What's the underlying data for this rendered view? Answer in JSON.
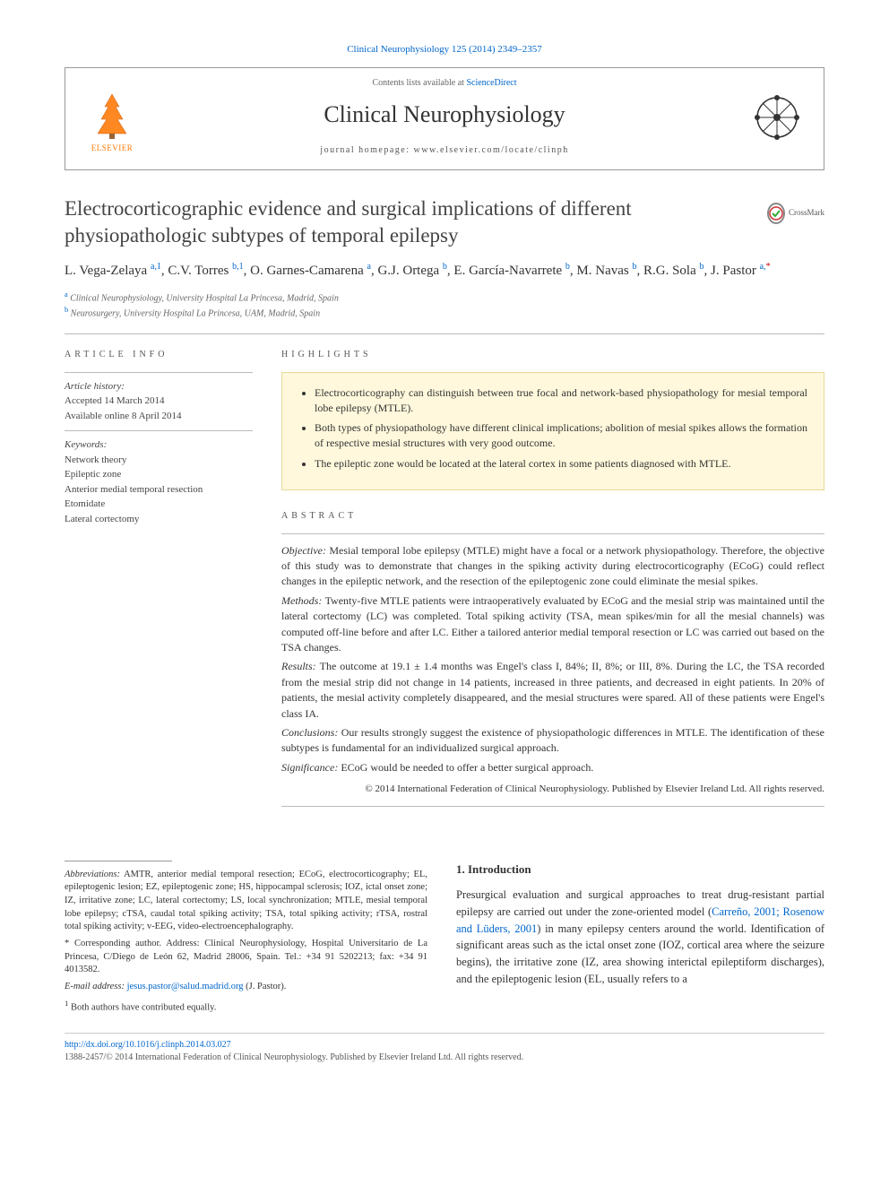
{
  "citation": {
    "journal_link_text": "Clinical Neurophysiology 125 (2014) 2349–2357",
    "link_color": "#0066cc"
  },
  "header": {
    "elsevier_label": "ELSEVIER",
    "contents_prefix": "Contents lists available at ",
    "contents_link": "ScienceDirect",
    "journal_name": "Clinical Neurophysiology",
    "homepage_prefix": "journal homepage: ",
    "homepage_url": "www.elsevier.com/locate/clinph"
  },
  "title": "Electrocorticographic evidence and surgical implications of different physiopathologic subtypes of temporal epilepsy",
  "crossmark_label": "CrossMark",
  "authors_html": "L. Vega-Zelaya <sup>a,1</sup>, C.V. Torres <sup>b,1</sup>, O. Garnes-Camarena <sup>a</sup>, G.J. Ortega <sup>b</sup>, E. García-Navarrete <sup>b</sup>, M. Navas <sup>b</sup>, R.G. Sola <sup>b</sup>, J. Pastor <sup>a,</sup><sup class=\"star\">*</sup>",
  "affiliations": [
    {
      "sup": "a",
      "text": "Clinical Neurophysiology, University Hospital La Princesa, Madrid, Spain"
    },
    {
      "sup": "b",
      "text": "Neurosurgery, University Hospital La Princesa, UAM, Madrid, Spain"
    }
  ],
  "article_info": {
    "label": "ARTICLE INFO",
    "history_label": "Article history:",
    "history": [
      "Accepted 14 March 2014",
      "Available online 8 April 2014"
    ],
    "keywords_label": "Keywords:",
    "keywords": [
      "Network theory",
      "Epileptic zone",
      "Anterior medial temporal resection",
      "Etomidate",
      "Lateral cortectomy"
    ]
  },
  "highlights": {
    "label": "HIGHLIGHTS",
    "items": [
      "Electrocorticography can distinguish between true focal and network-based physiopathology for mesial temporal lobe epilepsy (MTLE).",
      "Both types of physiopathology have different clinical implications; abolition of mesial spikes allows the formation of respective mesial structures with very good outcome.",
      "The epileptic zone would be located at the lateral cortex in some patients diagnosed with MTLE."
    ],
    "bg_color": "#fff8dc",
    "border_color": "#e8d898"
  },
  "abstract": {
    "label": "ABSTRACT",
    "sections": [
      {
        "label": "Objective:",
        "text": "Mesial temporal lobe epilepsy (MTLE) might have a focal or a network physiopathology. Therefore, the objective of this study was to demonstrate that changes in the spiking activity during electrocorticography (ECoG) could reflect changes in the epileptic network, and the resection of the epileptogenic zone could eliminate the mesial spikes."
      },
      {
        "label": "Methods:",
        "text": "Twenty-five MTLE patients were intraoperatively evaluated by ECoG and the mesial strip was maintained until the lateral cortectomy (LC) was completed. Total spiking activity (TSA, mean spikes/min for all the mesial channels) was computed off-line before and after LC. Either a tailored anterior medial temporal resection or LC was carried out based on the TSA changes."
      },
      {
        "label": "Results:",
        "text": "The outcome at 19.1 ± 1.4 months was Engel's class I, 84%; II, 8%; or III, 8%. During the LC, the TSA recorded from the mesial strip did not change in 14 patients, increased in three patients, and decreased in eight patients. In 20% of patients, the mesial activity completely disappeared, and the mesial structures were spared. All of these patients were Engel's class IA."
      },
      {
        "label": "Conclusions:",
        "text": "Our results strongly suggest the existence of physiopathologic differences in MTLE. The identification of these subtypes is fundamental for an individualized surgical approach."
      },
      {
        "label": "Significance:",
        "text": "ECoG would be needed to offer a better surgical approach."
      }
    ],
    "copyright": "© 2014 International Federation of Clinical Neurophysiology. Published by Elsevier Ireland Ltd. All rights reserved."
  },
  "footnotes": {
    "abbrev_label": "Abbreviations:",
    "abbrev_text": "AMTR, anterior medial temporal resection; ECoG, electrocorticography; EL, epileptogenic lesion; EZ, epileptogenic zone; HS, hippocampal sclerosis; IOZ, ictal onset zone; IZ, irritative zone; LC, lateral cortectomy; LS, local synchronization; MTLE, mesial temporal lobe epilepsy; cTSA, caudal total spiking activity; TSA, total spiking activity; rTSA, rostral total spiking activity; v-EEG, video-electroencephalography.",
    "corr_label": "* Corresponding author.",
    "corr_text": "Address: Clinical Neurophysiology, Hospital Universitario de La Princesa, C/Diego de León 62, Madrid 28006, Spain. Tel.: +34 91 5202213; fax: +34 91 4013582.",
    "email_label": "E-mail address:",
    "email": "jesus.pastor@salud.madrid.org",
    "email_who": "(J. Pastor).",
    "equal": "Both authors have contributed equally.",
    "equal_sup": "1"
  },
  "intro": {
    "heading": "1. Introduction",
    "paragraph": "Presurgical evaluation and surgical approaches to treat drug-resistant partial epilepsy are carried out under the zone-oriented model (",
    "ref_link": "Carreño, 2001; Rosenow and Lüders, 2001",
    "paragraph_after": ") in many epilepsy centers around the world. Identification of significant areas such as the ictal onset zone (IOZ, cortical area where the seizure begins), the irritative zone (IZ, area showing interictal epileptiform discharges), and the epileptogenic lesion (EL, usually refers to a"
  },
  "footer": {
    "doi": "http://dx.doi.org/10.1016/j.clinph.2014.03.027",
    "issn_line": "1388-2457/© 2014 International Federation of Clinical Neurophysiology. Published by Elsevier Ireland Ltd. All rights reserved."
  },
  "colors": {
    "link": "#0066cc",
    "text": "#333333",
    "muted": "#666666",
    "border": "#bbbbbb",
    "elsevier_orange": "#ff7700"
  }
}
